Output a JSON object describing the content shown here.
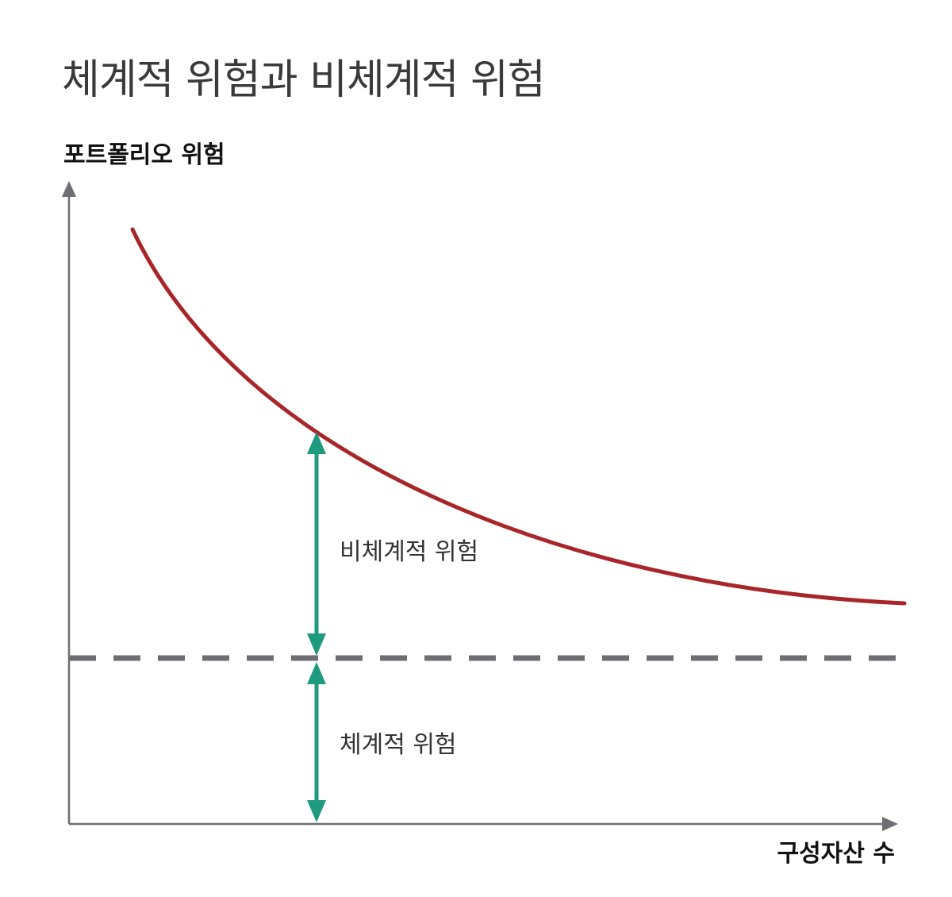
{
  "title": "체계적 위험과 비체계적 위험",
  "y_axis_label": "포트폴리오 위험",
  "x_axis_label": "구성자산 수",
  "annotations": {
    "unsystematic": "비체계적 위험",
    "systematic": "체계적 위험"
  },
  "colors": {
    "curve": "#a8262a",
    "arrow": "#1e9a7f",
    "axis": "#6e6e72",
    "dashed": "#6e6e72"
  }
}
